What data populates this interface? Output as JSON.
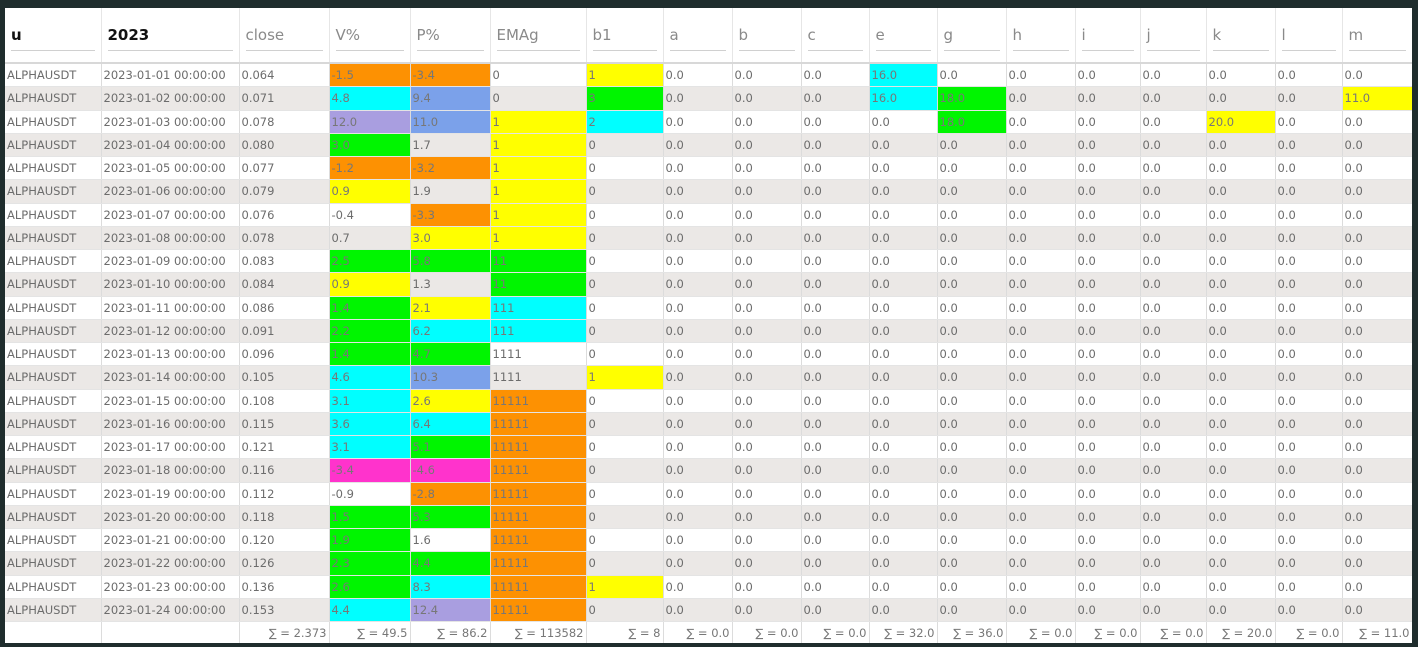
{
  "table": {
    "columns": [
      "u",
      "2023",
      "close",
      "V%",
      "P%",
      "EMAg",
      "b1",
      "a",
      "b",
      "c",
      "e",
      "g",
      "h",
      "i",
      "j",
      "k",
      "l",
      "m"
    ],
    "rows": [
      [
        "ALPHAUSDT",
        "2023-01-01 00:00:00",
        "0.064",
        {
          "text": "-1.5",
          "color": "#fd9102"
        },
        {
          "text": "-3.4",
          "color": "#fd9102"
        },
        "0",
        {
          "text": "1",
          "color": "#ffff00"
        },
        "0.0",
        "0.0",
        "0.0",
        {
          "text": "16.0",
          "color": "#00ffff"
        },
        "0.0",
        "0.0",
        "0.0",
        "0.0",
        "0.0",
        "0.0",
        "0.0"
      ],
      [
        "ALPHAUSDT",
        "2023-01-02 00:00:00",
        "0.071",
        {
          "text": "4.8",
          "color": "#00ffff"
        },
        {
          "text": "9.4",
          "color": "#7ba1ea"
        },
        "0",
        {
          "text": "3",
          "color": "#00f500"
        },
        "0.0",
        "0.0",
        "0.0",
        {
          "text": "16.0",
          "color": "#00ffff"
        },
        {
          "text": "18.0",
          "color": "#00f500"
        },
        "0.0",
        "0.0",
        "0.0",
        "0.0",
        "0.0",
        {
          "text": "11.0",
          "color": "#ffff00"
        }
      ],
      [
        "ALPHAUSDT",
        "2023-01-03 00:00:00",
        "0.078",
        {
          "text": "12.0",
          "color": "#a99ee0"
        },
        {
          "text": "11.0",
          "color": "#7ba1ea"
        },
        {
          "text": "1",
          "color": "#ffff00"
        },
        {
          "text": "2",
          "color": "#00ffff"
        },
        "0.0",
        "0.0",
        "0.0",
        "0.0",
        {
          "text": "18.0",
          "color": "#00f500"
        },
        "0.0",
        "0.0",
        "0.0",
        {
          "text": "20.0",
          "color": "#ffff00"
        },
        "0.0",
        "0.0"
      ],
      [
        "ALPHAUSDT",
        "2023-01-04 00:00:00",
        "0.080",
        {
          "text": "3.0",
          "color": "#00f500"
        },
        "1.7",
        {
          "text": "1",
          "color": "#ffff00"
        },
        "0",
        "0.0",
        "0.0",
        "0.0",
        "0.0",
        "0.0",
        "0.0",
        "0.0",
        "0.0",
        "0.0",
        "0.0",
        "0.0"
      ],
      [
        "ALPHAUSDT",
        "2023-01-05 00:00:00",
        "0.077",
        {
          "text": "-1.2",
          "color": "#fd9102"
        },
        {
          "text": "-3.2",
          "color": "#fd9102"
        },
        {
          "text": "1",
          "color": "#ffff00"
        },
        "0",
        "0.0",
        "0.0",
        "0.0",
        "0.0",
        "0.0",
        "0.0",
        "0.0",
        "0.0",
        "0.0",
        "0.0",
        "0.0"
      ],
      [
        "ALPHAUSDT",
        "2023-01-06 00:00:00",
        "0.079",
        {
          "text": "0.9",
          "color": "#ffff00"
        },
        "1.9",
        {
          "text": "1",
          "color": "#ffff00"
        },
        "0",
        "0.0",
        "0.0",
        "0.0",
        "0.0",
        "0.0",
        "0.0",
        "0.0",
        "0.0",
        "0.0",
        "0.0",
        "0.0"
      ],
      [
        "ALPHAUSDT",
        "2023-01-07 00:00:00",
        "0.076",
        "-0.4",
        {
          "text": "-3.3",
          "color": "#fd9102"
        },
        {
          "text": "1",
          "color": "#ffff00"
        },
        "0",
        "0.0",
        "0.0",
        "0.0",
        "0.0",
        "0.0",
        "0.0",
        "0.0",
        "0.0",
        "0.0",
        "0.0",
        "0.0"
      ],
      [
        "ALPHAUSDT",
        "2023-01-08 00:00:00",
        "0.078",
        "0.7",
        {
          "text": "3.0",
          "color": "#ffff00"
        },
        {
          "text": "1",
          "color": "#ffff00"
        },
        "0",
        "0.0",
        "0.0",
        "0.0",
        "0.0",
        "0.0",
        "0.0",
        "0.0",
        "0.0",
        "0.0",
        "0.0",
        "0.0"
      ],
      [
        "ALPHAUSDT",
        "2023-01-09 00:00:00",
        "0.083",
        {
          "text": "2.5",
          "color": "#00f500"
        },
        {
          "text": "5.8",
          "color": "#00f500"
        },
        {
          "text": "11",
          "color": "#00f500"
        },
        "0",
        "0.0",
        "0.0",
        "0.0",
        "0.0",
        "0.0",
        "0.0",
        "0.0",
        "0.0",
        "0.0",
        "0.0",
        "0.0"
      ],
      [
        "ALPHAUSDT",
        "2023-01-10 00:00:00",
        "0.084",
        {
          "text": "0.9",
          "color": "#ffff00"
        },
        "1.3",
        {
          "text": "11",
          "color": "#00f500"
        },
        "0",
        "0.0",
        "0.0",
        "0.0",
        "0.0",
        "0.0",
        "0.0",
        "0.0",
        "0.0",
        "0.0",
        "0.0",
        "0.0"
      ],
      [
        "ALPHAUSDT",
        "2023-01-11 00:00:00",
        "0.086",
        {
          "text": "1.4",
          "color": "#00f500"
        },
        {
          "text": "2.1",
          "color": "#ffff00"
        },
        {
          "text": "111",
          "color": "#00ffff"
        },
        "0",
        "0.0",
        "0.0",
        "0.0",
        "0.0",
        "0.0",
        "0.0",
        "0.0",
        "0.0",
        "0.0",
        "0.0",
        "0.0"
      ],
      [
        "ALPHAUSDT",
        "2023-01-12 00:00:00",
        "0.091",
        {
          "text": "2.2",
          "color": "#00f500"
        },
        {
          "text": "6.2",
          "color": "#00ffff"
        },
        {
          "text": "111",
          "color": "#00ffff"
        },
        "0",
        "0.0",
        "0.0",
        "0.0",
        "0.0",
        "0.0",
        "0.0",
        "0.0",
        "0.0",
        "0.0",
        "0.0",
        "0.0"
      ],
      [
        "ALPHAUSDT",
        "2023-01-13 00:00:00",
        "0.096",
        {
          "text": "1.4",
          "color": "#00f500"
        },
        {
          "text": "4.7",
          "color": "#00f500"
        },
        "1111",
        "0",
        "0.0",
        "0.0",
        "0.0",
        "0.0",
        "0.0",
        "0.0",
        "0.0",
        "0.0",
        "0.0",
        "0.0",
        "0.0"
      ],
      [
        "ALPHAUSDT",
        "2023-01-14 00:00:00",
        "0.105",
        {
          "text": "4.6",
          "color": "#00ffff"
        },
        {
          "text": "10.3",
          "color": "#7ba1ea"
        },
        "1111",
        {
          "text": "1",
          "color": "#ffff00"
        },
        "0.0",
        "0.0",
        "0.0",
        "0.0",
        "0.0",
        "0.0",
        "0.0",
        "0.0",
        "0.0",
        "0.0",
        "0.0"
      ],
      [
        "ALPHAUSDT",
        "2023-01-15 00:00:00",
        "0.108",
        {
          "text": "3.1",
          "color": "#00ffff"
        },
        {
          "text": "2.6",
          "color": "#ffff00"
        },
        {
          "text": "11111",
          "color": "#fd9102"
        },
        "0",
        "0.0",
        "0.0",
        "0.0",
        "0.0",
        "0.0",
        "0.0",
        "0.0",
        "0.0",
        "0.0",
        "0.0",
        "0.0"
      ],
      [
        "ALPHAUSDT",
        "2023-01-16 00:00:00",
        "0.115",
        {
          "text": "3.6",
          "color": "#00ffff"
        },
        {
          "text": "6.4",
          "color": "#00ffff"
        },
        {
          "text": "11111",
          "color": "#fd9102"
        },
        "0",
        "0.0",
        "0.0",
        "0.0",
        "0.0",
        "0.0",
        "0.0",
        "0.0",
        "0.0",
        "0.0",
        "0.0",
        "0.0"
      ],
      [
        "ALPHAUSDT",
        "2023-01-17 00:00:00",
        "0.121",
        {
          "text": "3.1",
          "color": "#00ffff"
        },
        {
          "text": "5.1",
          "color": "#00f500"
        },
        {
          "text": "11111",
          "color": "#fd9102"
        },
        "0",
        "0.0",
        "0.0",
        "0.0",
        "0.0",
        "0.0",
        "0.0",
        "0.0",
        "0.0",
        "0.0",
        "0.0",
        "0.0"
      ],
      [
        "ALPHAUSDT",
        "2023-01-18 00:00:00",
        "0.116",
        {
          "text": "-3.4",
          "color": "#ff33cc"
        },
        {
          "text": "-4.6",
          "color": "#ff33cc"
        },
        {
          "text": "11111",
          "color": "#fd9102"
        },
        "0",
        "0.0",
        "0.0",
        "0.0",
        "0.0",
        "0.0",
        "0.0",
        "0.0",
        "0.0",
        "0.0",
        "0.0",
        "0.0"
      ],
      [
        "ALPHAUSDT",
        "2023-01-19 00:00:00",
        "0.112",
        "-0.9",
        {
          "text": "-2.8",
          "color": "#fd9102"
        },
        {
          "text": "11111",
          "color": "#fd9102"
        },
        "0",
        "0.0",
        "0.0",
        "0.0",
        "0.0",
        "0.0",
        "0.0",
        "0.0",
        "0.0",
        "0.0",
        "0.0",
        "0.0"
      ],
      [
        "ALPHAUSDT",
        "2023-01-20 00:00:00",
        "0.118",
        {
          "text": "1.5",
          "color": "#00f500"
        },
        {
          "text": "5.3",
          "color": "#00f500"
        },
        {
          "text": "11111",
          "color": "#fd9102"
        },
        "0",
        "0.0",
        "0.0",
        "0.0",
        "0.0",
        "0.0",
        "0.0",
        "0.0",
        "0.0",
        "0.0",
        "0.0",
        "0.0"
      ],
      [
        "ALPHAUSDT",
        "2023-01-21 00:00:00",
        "0.120",
        {
          "text": "1.9",
          "color": "#00f500"
        },
        "1.6",
        {
          "text": "11111",
          "color": "#fd9102"
        },
        "0",
        "0.0",
        "0.0",
        "0.0",
        "0.0",
        "0.0",
        "0.0",
        "0.0",
        "0.0",
        "0.0",
        "0.0",
        "0.0"
      ],
      [
        "ALPHAUSDT",
        "2023-01-22 00:00:00",
        "0.126",
        {
          "text": "2.3",
          "color": "#00f500"
        },
        {
          "text": "4.4",
          "color": "#00f500"
        },
        {
          "text": "11111",
          "color": "#fd9102"
        },
        "0",
        "0.0",
        "0.0",
        "0.0",
        "0.0",
        "0.0",
        "0.0",
        "0.0",
        "0.0",
        "0.0",
        "0.0",
        "0.0"
      ],
      [
        "ALPHAUSDT",
        "2023-01-23 00:00:00",
        "0.136",
        {
          "text": "2.6",
          "color": "#00f500"
        },
        {
          "text": "8.3",
          "color": "#00ffff"
        },
        {
          "text": "11111",
          "color": "#fd9102"
        },
        {
          "text": "1",
          "color": "#ffff00"
        },
        "0.0",
        "0.0",
        "0.0",
        "0.0",
        "0.0",
        "0.0",
        "0.0",
        "0.0",
        "0.0",
        "0.0",
        "0.0"
      ],
      [
        "ALPHAUSDT",
        "2023-01-24 00:00:00",
        "0.153",
        {
          "text": "4.4",
          "color": "#00ffff"
        },
        {
          "text": "12.4",
          "color": "#a99ee0"
        },
        {
          "text": "11111",
          "color": "#fd9102"
        },
        "0",
        "0.0",
        "0.0",
        "0.0",
        "0.0",
        "0.0",
        "0.0",
        "0.0",
        "0.0",
        "0.0",
        "0.0",
        "0.0"
      ]
    ],
    "footer": [
      null,
      null,
      "∑ = 2.373",
      "∑ = 49.5",
      "∑ = 86.2",
      "∑ = 113582",
      "∑ = 8",
      "∑ = 0.0",
      "∑ = 0.0",
      "∑ = 0.0",
      "∑ = 32.0",
      "∑ = 36.0",
      "∑ = 0.0",
      "∑ = 0.0",
      "∑ = 0.0",
      "∑ = 20.0",
      "∑ = 0.0",
      "∑ = 11.0"
    ]
  }
}
